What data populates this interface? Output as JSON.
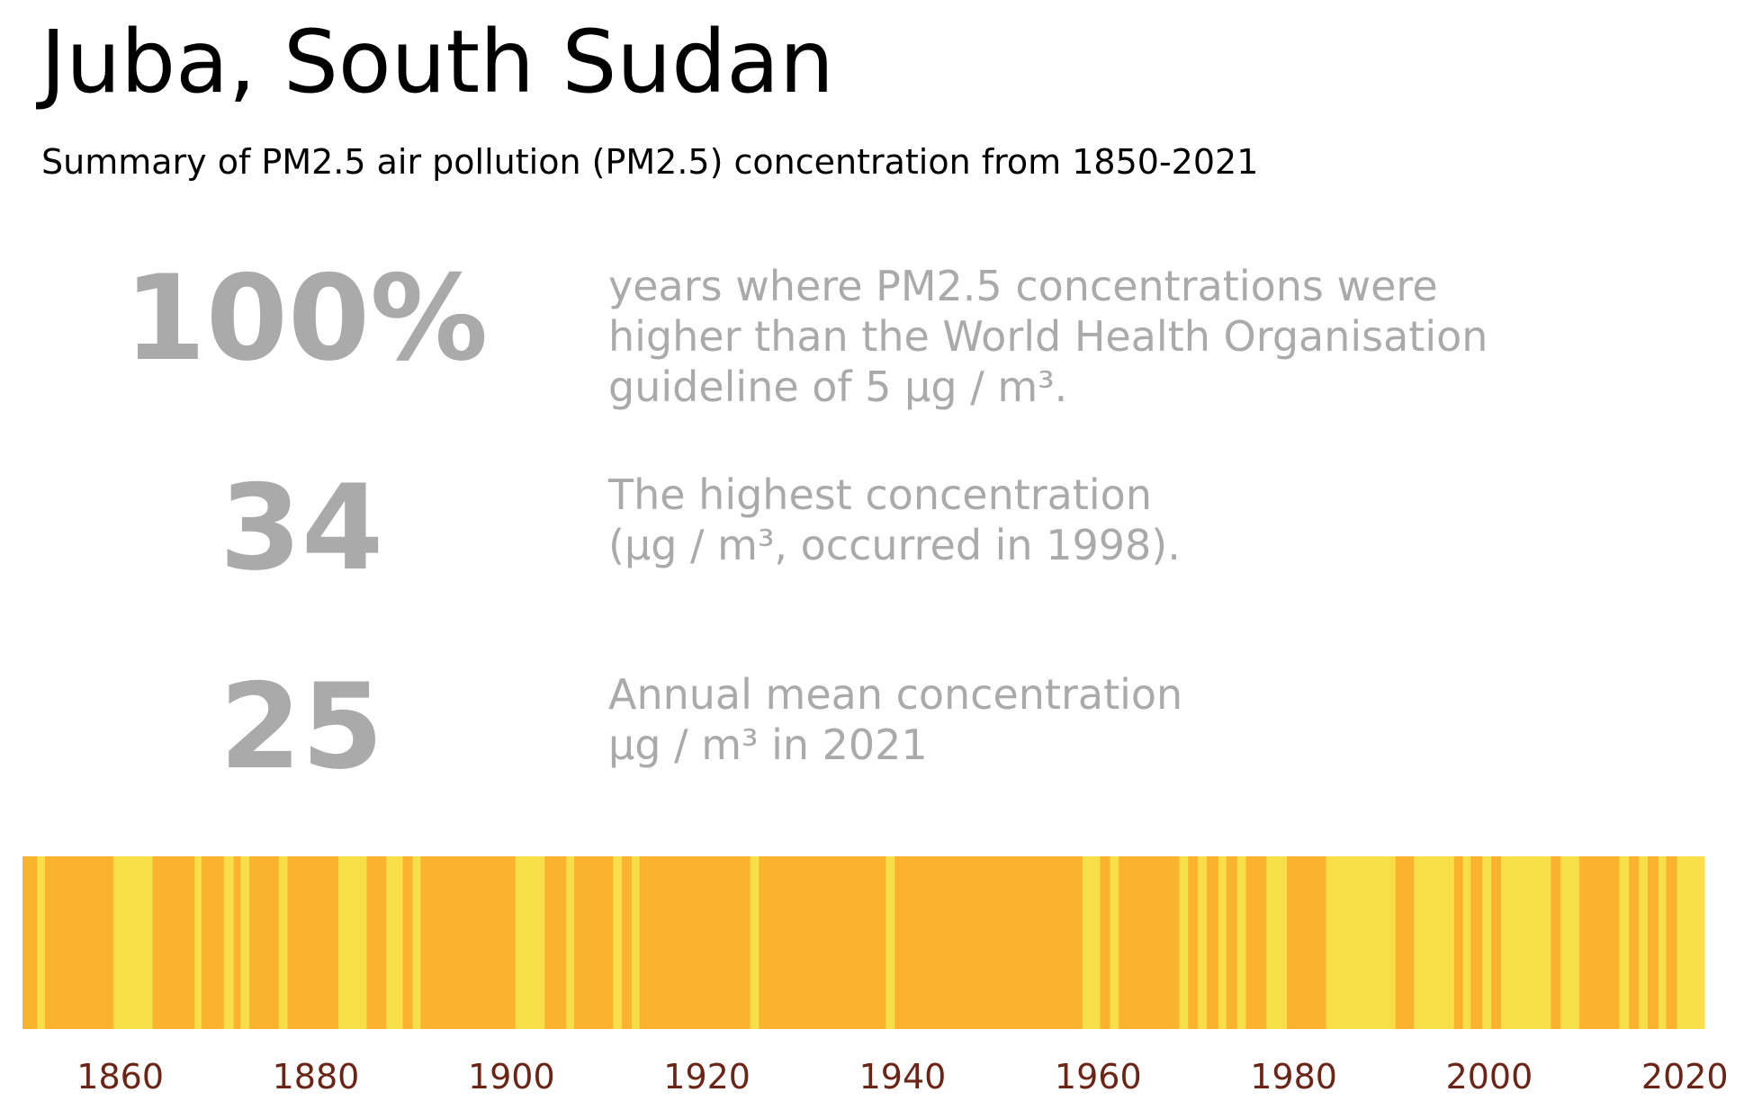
{
  "title": "Juba, South Sudan",
  "subtitle": "Summary of PM2.5 air pollution (PM2.5) concentration from 1850-2021",
  "stats": [
    {
      "value": "100%",
      "description": "years where PM2.5 concentrations were\nhigher than the World Health Organisation\nguideline of 5 µg / m³."
    },
    {
      "value": "34",
      "description": "The highest concentration\n(µg / m³, occurred in 1998)."
    },
    {
      "value": "25",
      "description": "Annual mean concentration\nµg / m³ in 2021"
    }
  ],
  "colors": {
    "high": "#fbb32f",
    "low": "#f8de48",
    "tick_label": "#6b2416",
    "stat_text": "#aaaaaa"
  },
  "chart_data": {
    "type": "heatmap",
    "x_range": [
      1850,
      2022
    ],
    "x_ticks": [
      1860,
      1880,
      1900,
      1920,
      1940,
      1960,
      1980,
      2000,
      2020
    ],
    "bands": [
      {
        "start": 1850,
        "end": 1851.5,
        "level": "high"
      },
      {
        "start": 1851.5,
        "end": 1852.3,
        "level": "low"
      },
      {
        "start": 1852.3,
        "end": 1859.3,
        "level": "high"
      },
      {
        "start": 1859.3,
        "end": 1863.3,
        "level": "low"
      },
      {
        "start": 1863.3,
        "end": 1867.6,
        "level": "high"
      },
      {
        "start": 1867.6,
        "end": 1868.3,
        "level": "low"
      },
      {
        "start": 1868.3,
        "end": 1870.6,
        "level": "high"
      },
      {
        "start": 1870.6,
        "end": 1871.6,
        "level": "low"
      },
      {
        "start": 1871.6,
        "end": 1872.3,
        "level": "high"
      },
      {
        "start": 1872.3,
        "end": 1873.2,
        "level": "low"
      },
      {
        "start": 1873.2,
        "end": 1876.2,
        "level": "high"
      },
      {
        "start": 1876.2,
        "end": 1877.1,
        "level": "low"
      },
      {
        "start": 1877.1,
        "end": 1882.3,
        "level": "high"
      },
      {
        "start": 1882.3,
        "end": 1885.2,
        "level": "low"
      },
      {
        "start": 1885.2,
        "end": 1887.2,
        "level": "high"
      },
      {
        "start": 1887.2,
        "end": 1888.9,
        "level": "low"
      },
      {
        "start": 1888.9,
        "end": 1889.9,
        "level": "high"
      },
      {
        "start": 1889.9,
        "end": 1890.7,
        "level": "low"
      },
      {
        "start": 1890.7,
        "end": 1900.4,
        "level": "high"
      },
      {
        "start": 1900.4,
        "end": 1903.4,
        "level": "low"
      },
      {
        "start": 1903.4,
        "end": 1905.6,
        "level": "high"
      },
      {
        "start": 1905.6,
        "end": 1906.4,
        "level": "low"
      },
      {
        "start": 1906.4,
        "end": 1910.4,
        "level": "high"
      },
      {
        "start": 1910.4,
        "end": 1911.3,
        "level": "low"
      },
      {
        "start": 1911.3,
        "end": 1912.3,
        "level": "high"
      },
      {
        "start": 1912.3,
        "end": 1913.1,
        "level": "low"
      },
      {
        "start": 1913.1,
        "end": 1924.4,
        "level": "high"
      },
      {
        "start": 1924.4,
        "end": 1925.3,
        "level": "low"
      },
      {
        "start": 1925.3,
        "end": 1938.3,
        "level": "high"
      },
      {
        "start": 1938.3,
        "end": 1939.2,
        "level": "low"
      },
      {
        "start": 1939.2,
        "end": 1958.4,
        "level": "high"
      },
      {
        "start": 1958.4,
        "end": 1960.2,
        "level": "low"
      },
      {
        "start": 1960.2,
        "end": 1961.2,
        "level": "high"
      },
      {
        "start": 1961.2,
        "end": 1962.1,
        "level": "low"
      },
      {
        "start": 1962.1,
        "end": 1968.3,
        "level": "high"
      },
      {
        "start": 1968.3,
        "end": 1969.2,
        "level": "low"
      },
      {
        "start": 1969.2,
        "end": 1970.2,
        "level": "high"
      },
      {
        "start": 1970.2,
        "end": 1971.1,
        "level": "low"
      },
      {
        "start": 1971.1,
        "end": 1972.3,
        "level": "high"
      },
      {
        "start": 1972.3,
        "end": 1973.1,
        "level": "low"
      },
      {
        "start": 1973.1,
        "end": 1974.2,
        "level": "high"
      },
      {
        "start": 1974.2,
        "end": 1975.1,
        "level": "low"
      },
      {
        "start": 1975.1,
        "end": 1977.2,
        "level": "high"
      },
      {
        "start": 1977.2,
        "end": 1979.3,
        "level": "low"
      },
      {
        "start": 1979.3,
        "end": 1981.2,
        "level": "high"
      },
      {
        "start": 1981.2,
        "end": 1983.3,
        "level": "high"
      },
      {
        "start": 1983.3,
        "end": 1990.4,
        "level": "low"
      },
      {
        "start": 1990.4,
        "end": 1992.3,
        "level": "high"
      },
      {
        "start": 1992.3,
        "end": 1996.4,
        "level": "low"
      },
      {
        "start": 1996.4,
        "end": 1997.3,
        "level": "high"
      },
      {
        "start": 1997.3,
        "end": 1998.1,
        "level": "low"
      },
      {
        "start": 1998.1,
        "end": 1999.3,
        "level": "high"
      },
      {
        "start": 1999.3,
        "end": 2000.2,
        "level": "low"
      },
      {
        "start": 2000.2,
        "end": 2001.2,
        "level": "high"
      },
      {
        "start": 2001.2,
        "end": 2006.3,
        "level": "low"
      },
      {
        "start": 2006.3,
        "end": 2007.3,
        "level": "high"
      },
      {
        "start": 2007.3,
        "end": 2009.2,
        "level": "low"
      },
      {
        "start": 2009.2,
        "end": 2013.3,
        "level": "high"
      },
      {
        "start": 2013.3,
        "end": 2014.3,
        "level": "low"
      },
      {
        "start": 2014.3,
        "end": 2015.3,
        "level": "high"
      },
      {
        "start": 2015.3,
        "end": 2016.2,
        "level": "low"
      },
      {
        "start": 2016.2,
        "end": 2017.3,
        "level": "high"
      },
      {
        "start": 2017.3,
        "end": 2018.1,
        "level": "low"
      },
      {
        "start": 2018.1,
        "end": 2019.2,
        "level": "high"
      },
      {
        "start": 2019.2,
        "end": 2020.0,
        "level": "low"
      },
      {
        "start": 2020.0,
        "end": 2022.0,
        "level": "low"
      }
    ]
  }
}
